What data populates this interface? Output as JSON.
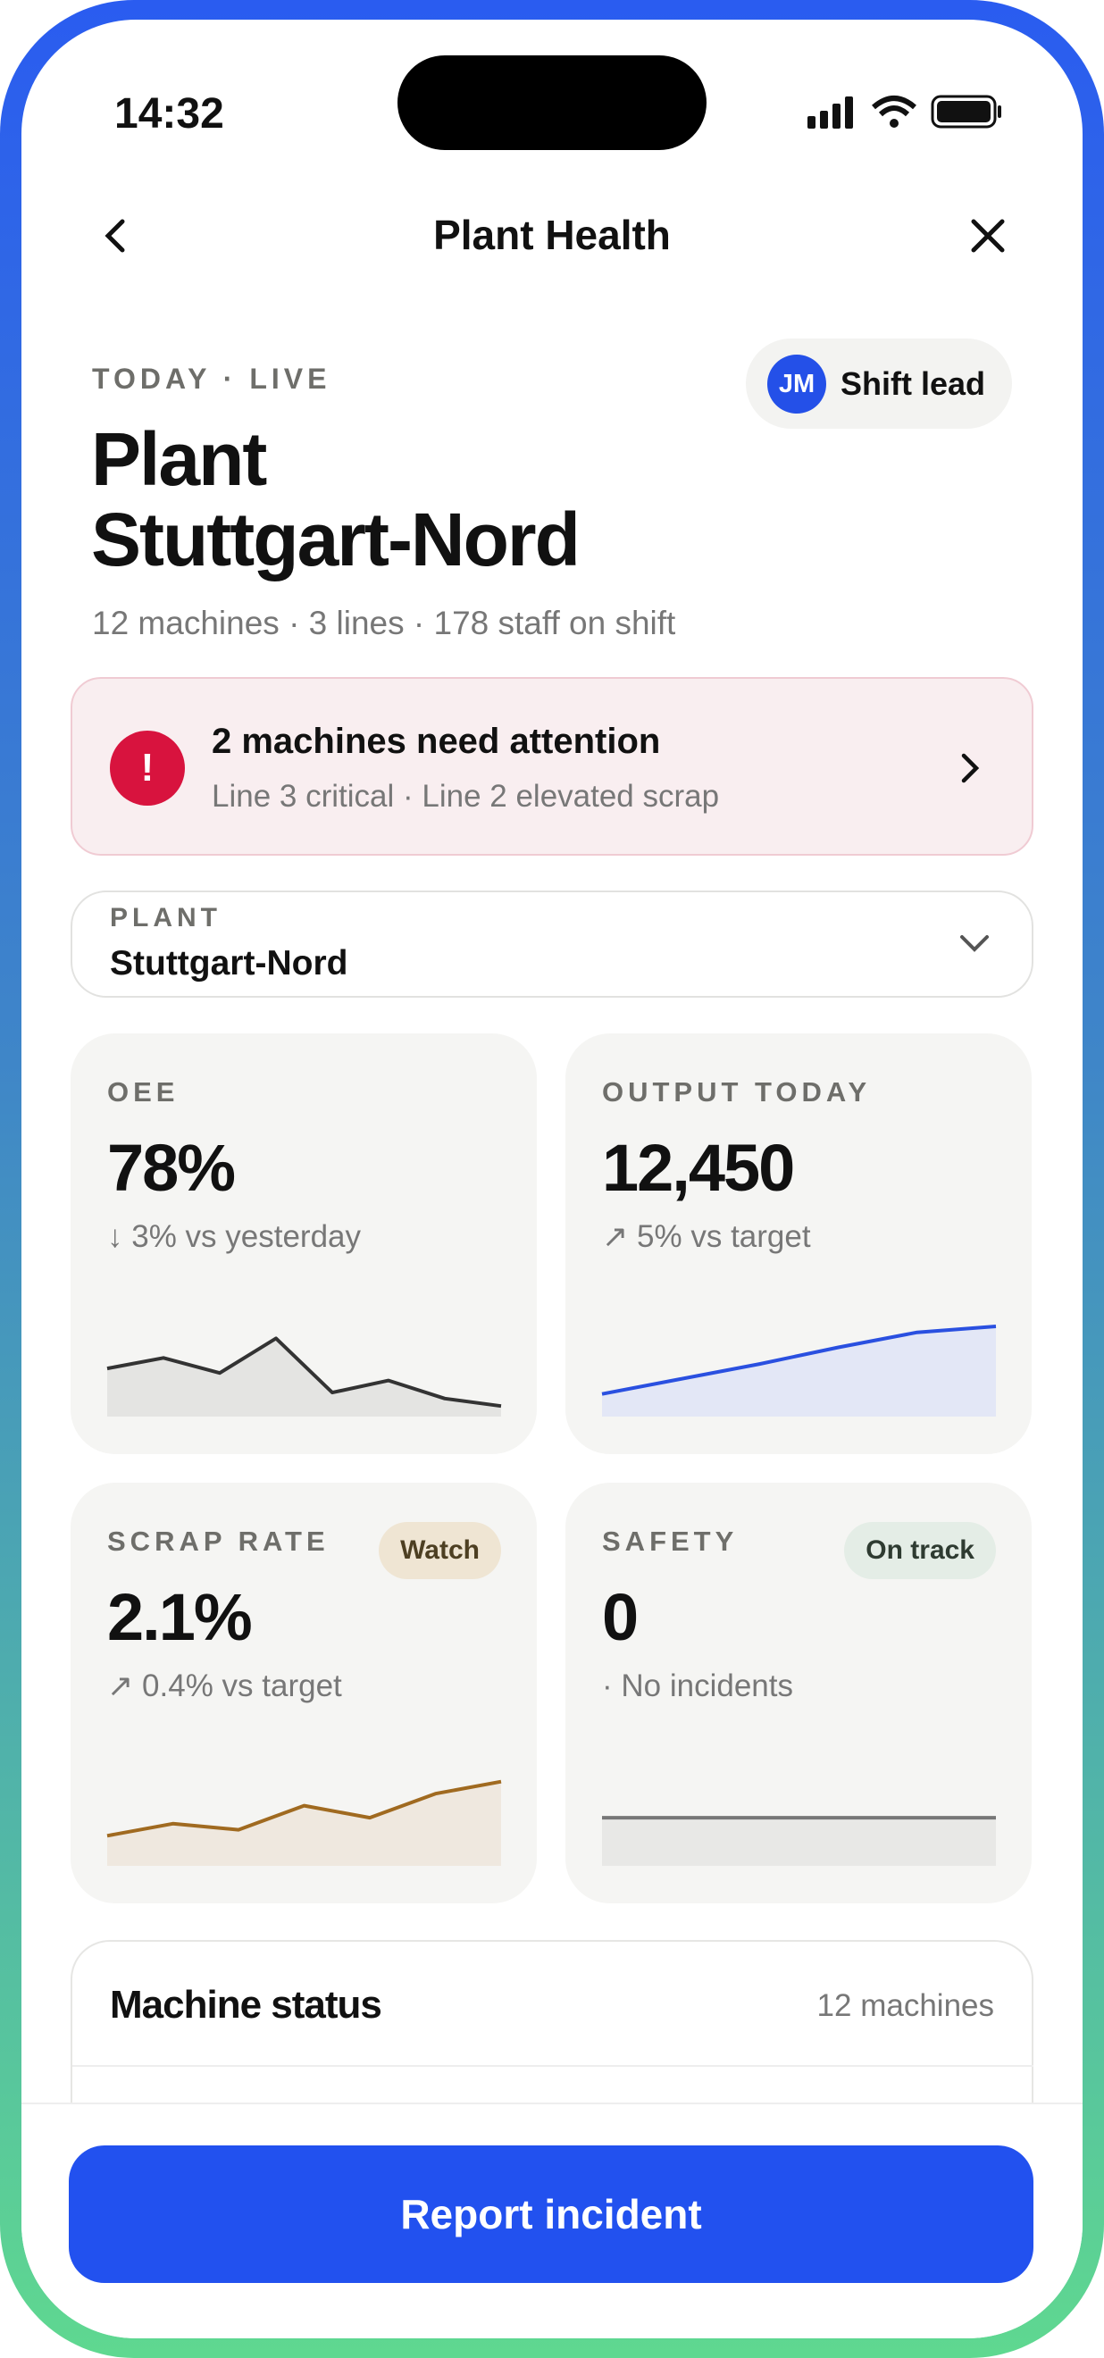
{
  "status_bar": {
    "time": "14:32"
  },
  "nav": {
    "title": "Plant Health"
  },
  "header": {
    "eyebrow": "TODAY · LIVE",
    "title_lines": [
      "Plant",
      "Stuttgart-Nord"
    ],
    "subtitle": "12 machines · 3 lines · 178 staff on shift",
    "role": {
      "initials": "JM",
      "label": "Shift lead"
    }
  },
  "alert": {
    "icon": "!",
    "title": "2 machines need attention",
    "detail": "Line 3 critical · Line 2 elevated scrap"
  },
  "plant_select": {
    "label": "PLANT",
    "value": "Stuttgart-Nord"
  },
  "metrics": [
    {
      "label": "OEE",
      "value": "78%",
      "delta": "↓ 3% vs yesterday",
      "color": "#333333",
      "fill": "#e4e4e2",
      "sparkline": [
        32,
        39,
        29,
        52,
        16,
        24,
        12,
        7
      ]
    },
    {
      "label": "OUTPUT TODAY",
      "value": "12,450",
      "delta": "↗ 5% vs target",
      "color": "#2a50e0",
      "fill": "#e3e7f6",
      "sparkline": [
        15,
        25,
        35,
        46,
        56,
        60
      ]
    },
    {
      "label": "SCRAP RATE",
      "value": "2.1%",
      "delta": "↗ 0.4% vs target",
      "badge": "Watch",
      "color": "#a06a20",
      "fill": "#efe8df",
      "sparkline": [
        20,
        28,
        24,
        40,
        32,
        48,
        56
      ]
    },
    {
      "label": "SAFETY",
      "value": "0",
      "delta": "· No incidents",
      "badge": "On track",
      "color": "#777777",
      "fill": "#e8e8e6",
      "sparkline": [
        32,
        32
      ]
    }
  ],
  "machine_status": {
    "title": "Machine status",
    "count": "12 machines"
  },
  "action": {
    "label": "Report incident"
  }
}
